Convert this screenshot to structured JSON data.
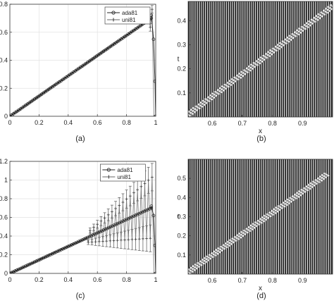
{
  "chart_data": [
    {
      "id": "a",
      "type": "line",
      "caption": "(a)",
      "xlim": [
        0,
        1
      ],
      "ylim": [
        0,
        0.8
      ],
      "xticks": [
        0,
        0.2,
        0.4,
        0.6,
        0.8,
        1
      ],
      "yticks": [
        0,
        0.2,
        0.4,
        0.6,
        0.8
      ],
      "xlabel": "",
      "ylabel": "",
      "legend": {
        "position": "top-right",
        "entries": [
          "ada81",
          "uni81"
        ]
      },
      "series": [
        {
          "name": "ada81",
          "marker": "o",
          "slope": 0.722,
          "points": 81,
          "drop": [
            [
              0.97,
              0.72
            ],
            [
              0.985,
              0.55
            ],
            [
              0.995,
              0.25
            ],
            [
              1.0,
              0
            ]
          ]
        },
        {
          "name": "uni81",
          "marker": "+",
          "oscillation_from": 0.95,
          "oscillation_amplitude": 0.06,
          "error_bars": true
        }
      ]
    },
    {
      "id": "b",
      "type": "scatter",
      "caption": "(b)",
      "xlim": [
        0.52,
        1.0
      ],
      "ylim": [
        0,
        0.48
      ],
      "xticks": [
        0.6,
        0.7,
        0.8,
        0.9
      ],
      "yticks": [
        0.1,
        0.2,
        0.3,
        0.4
      ],
      "xlabel": "x",
      "ylabel": "t",
      "mesh_lines": 75,
      "front": {
        "x": [
          0.52,
          1.0
        ],
        "t": [
          0.01,
          0.46
        ]
      }
    },
    {
      "id": "c",
      "type": "line",
      "caption": "(c)",
      "xlim": [
        0,
        1
      ],
      "ylim": [
        0,
        1.2
      ],
      "xticks": [
        0,
        0.2,
        0.4,
        0.6,
        0.8,
        1
      ],
      "yticks": [
        0,
        0.2,
        0.4,
        0.6,
        0.8,
        1,
        1.2
      ],
      "xlabel": "",
      "ylabel": "",
      "legend": {
        "position": "top-center",
        "entries": [
          "ada81",
          "uni81"
        ]
      },
      "series": [
        {
          "name": "ada81",
          "marker": "o",
          "slope": 0.722,
          "points": 81,
          "drop": [
            [
              0.97,
              0.72
            ],
            [
              0.985,
              0.62
            ],
            [
              0.995,
              0.3
            ],
            [
              1.0,
              0
            ]
          ]
        },
        {
          "name": "uni81",
          "marker": "+",
          "oscillation_from": 0.53,
          "amplitude_start": 0.05,
          "amplitude_end": 0.33,
          "error_bars": true
        }
      ]
    },
    {
      "id": "d",
      "type": "scatter",
      "caption": "(d)",
      "xlim": [
        0.52,
        1.0
      ],
      "ylim": [
        0,
        0.6
      ],
      "xticks": [
        0.6,
        0.7,
        0.8,
        0.9
      ],
      "yticks": [
        0.1,
        0.2,
        0.3,
        0.4,
        0.5
      ],
      "xlabel": "x",
      "ylabel": "t",
      "mesh_lines": 75,
      "front": {
        "x": [
          0.52,
          0.98
        ],
        "t": [
          0.01,
          0.52
        ]
      }
    }
  ]
}
